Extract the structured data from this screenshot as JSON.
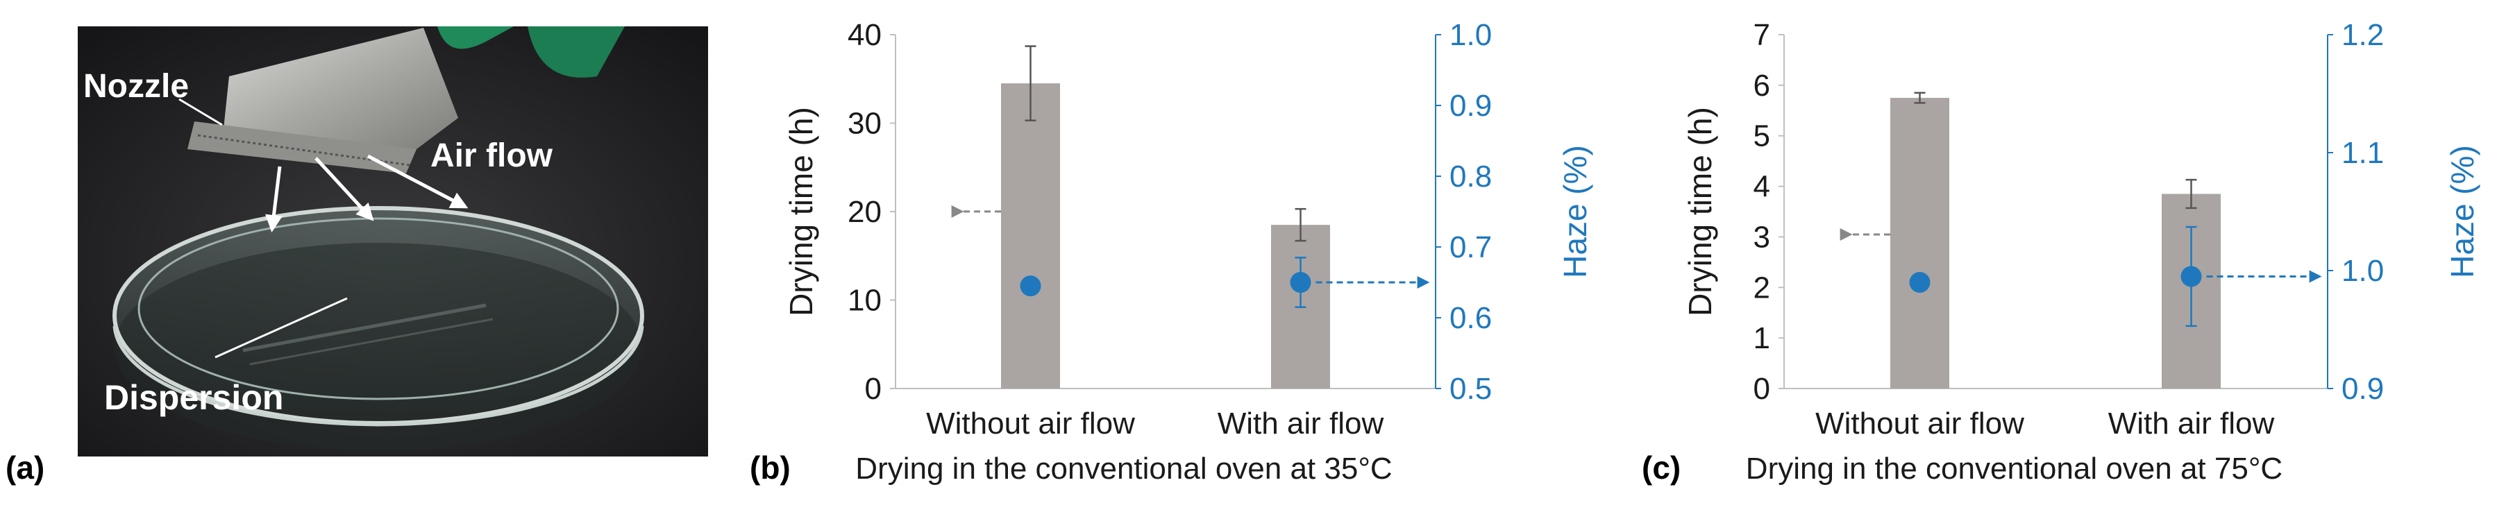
{
  "panel_a": {
    "letter": "(a)",
    "labels": {
      "nozzle": "Nozzle",
      "air_flow": "Air flow",
      "dispersion": "Dispersion"
    }
  },
  "chart_data": [
    {
      "type": "bar",
      "letter": "(b)",
      "categories": [
        "Without air flow",
        "With air flow"
      ],
      "xlabel": "Drying in the conventional oven at 35°C",
      "ylabel": "Drying time (h)",
      "ylabel_right": "Haze (%)",
      "ylim": [
        0,
        40
      ],
      "yticks": [
        0,
        10,
        20,
        30,
        40
      ],
      "ylim_right": [
        0.5,
        1.0
      ],
      "yticks_right": [
        "0.5",
        "0.6",
        "0.7",
        "0.8",
        "0.9",
        "1.0"
      ],
      "series": [
        {
          "axis": "left",
          "kind": "bar",
          "values": [
            34.5,
            18.5
          ],
          "errors": [
            4.2,
            1.8
          ],
          "color": "#aaa5a2"
        },
        {
          "axis": "right",
          "kind": "scatter",
          "values": [
            0.645,
            0.65
          ],
          "errors": [
            0.0,
            0.035
          ],
          "color": "#1f78bd"
        }
      ]
    },
    {
      "type": "bar",
      "letter": "(c)",
      "categories": [
        "Without air flow",
        "With air flow"
      ],
      "xlabel": "Drying in the conventional oven at 75°C",
      "ylabel": "Drying time (h)",
      "ylabel_right": "Haze (%)",
      "ylim": [
        0,
        7
      ],
      "yticks": [
        0,
        1,
        2,
        3,
        4,
        5,
        6,
        7
      ],
      "ylim_right": [
        0.9,
        1.2
      ],
      "yticks_right": [
        "0.9",
        "1.0",
        "1.1",
        "1.2"
      ],
      "series": [
        {
          "axis": "left",
          "kind": "bar",
          "values": [
            5.75,
            3.85
          ],
          "errors": [
            0.1,
            0.28
          ],
          "color": "#aaa5a2"
        },
        {
          "axis": "right",
          "kind": "scatter",
          "values": [
            0.99,
            0.995
          ],
          "errors": [
            0.0,
            0.042
          ],
          "color": "#1f78bd"
        }
      ]
    }
  ]
}
